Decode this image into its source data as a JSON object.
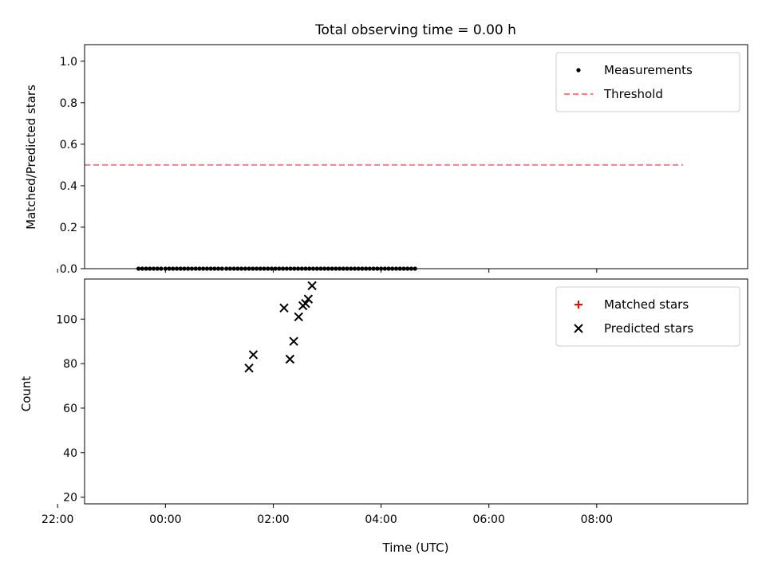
{
  "chart_data": [
    {
      "type": "scatter",
      "title": "Total observing time = 0.00 h",
      "ylabel": "Matched/Predicted stars",
      "xlabel": "",
      "xlim": [
        -1.5,
        10.8
      ],
      "ylim": [
        0,
        1.08
      ],
      "yticks": [
        0.0,
        0.2,
        0.4,
        0.6,
        0.8,
        1.0
      ],
      "yticklabels": [
        "0.0",
        "0.2",
        "0.4",
        "0.6",
        "0.8",
        "1.0"
      ],
      "xticks": [
        -2,
        0,
        2,
        4,
        6,
        8
      ],
      "legend": "top-right",
      "series": [
        {
          "name": "Measurements",
          "marker": "dot",
          "color": "#000000",
          "x": [
            -0.5,
            -0.43,
            -0.36,
            -0.29,
            -0.22,
            -0.15,
            -0.08,
            0.0,
            0.07,
            0.14,
            0.21,
            0.28,
            0.35,
            0.42,
            0.49,
            0.56,
            0.63,
            0.7,
            0.77,
            0.84,
            0.91,
            0.98,
            1.05,
            1.13,
            1.2,
            1.27,
            1.34,
            1.41,
            1.48,
            1.55,
            1.62,
            1.69,
            1.76,
            1.83,
            1.9,
            1.97,
            2.04,
            2.11,
            2.18,
            2.25,
            2.32,
            2.39,
            2.46,
            2.53,
            2.6,
            2.67,
            2.74,
            2.81,
            2.88,
            2.95,
            3.02,
            3.09,
            3.16,
            3.23,
            3.3,
            3.37,
            3.44,
            3.51,
            3.58,
            3.65,
            3.72,
            3.79,
            3.86,
            3.93,
            4.0,
            4.07,
            4.14,
            4.21,
            4.28,
            4.35,
            4.42,
            4.49,
            4.56,
            4.63
          ],
          "y": [
            0,
            0,
            0,
            0,
            0,
            0,
            0,
            0,
            0,
            0,
            0,
            0,
            0,
            0,
            0,
            0,
            0,
            0,
            0,
            0,
            0,
            0,
            0,
            0,
            0,
            0,
            0,
            0,
            0,
            0,
            0,
            0,
            0,
            0,
            0,
            0,
            0,
            0,
            0,
            0,
            0,
            0,
            0,
            0,
            0,
            0,
            0,
            0,
            0,
            0,
            0,
            0,
            0,
            0,
            0,
            0,
            0,
            0,
            0,
            0,
            0,
            0,
            0,
            0,
            0,
            0,
            0,
            0,
            0,
            0,
            0,
            0,
            0,
            0
          ]
        },
        {
          "name": "Threshold",
          "marker": "dashed-line",
          "color": "#ff7f7f",
          "x": [
            -1.5,
            9.6
          ],
          "y": [
            0.5,
            0.5
          ]
        }
      ]
    },
    {
      "type": "scatter",
      "title": "",
      "xlabel": "Time (UTC)",
      "ylabel": "Count",
      "xlim": [
        -1.5,
        10.8
      ],
      "ylim": [
        17,
        118
      ],
      "yticks": [
        20,
        40,
        60,
        80,
        100
      ],
      "yticklabels": [
        "20",
        "40",
        "60",
        "80",
        "100"
      ],
      "xticks": [
        -2,
        0,
        2,
        4,
        6,
        8
      ],
      "xticklabels": [
        "22:00",
        "00:00",
        "02:00",
        "04:00",
        "06:00",
        "08:00"
      ],
      "legend": "top-right",
      "series": [
        {
          "name": "Matched stars",
          "marker": "plus",
          "color": "#ff0000",
          "x": [],
          "y": []
        },
        {
          "name": "Predicted stars",
          "marker": "x",
          "color": "#000000",
          "x": [
            1.55,
            1.63,
            2.2,
            2.31,
            2.38,
            2.47,
            2.55,
            2.6,
            2.65,
            2.72
          ],
          "y": [
            78,
            84,
            105,
            82,
            90,
            101,
            106,
            107,
            109,
            115
          ]
        }
      ]
    }
  ]
}
